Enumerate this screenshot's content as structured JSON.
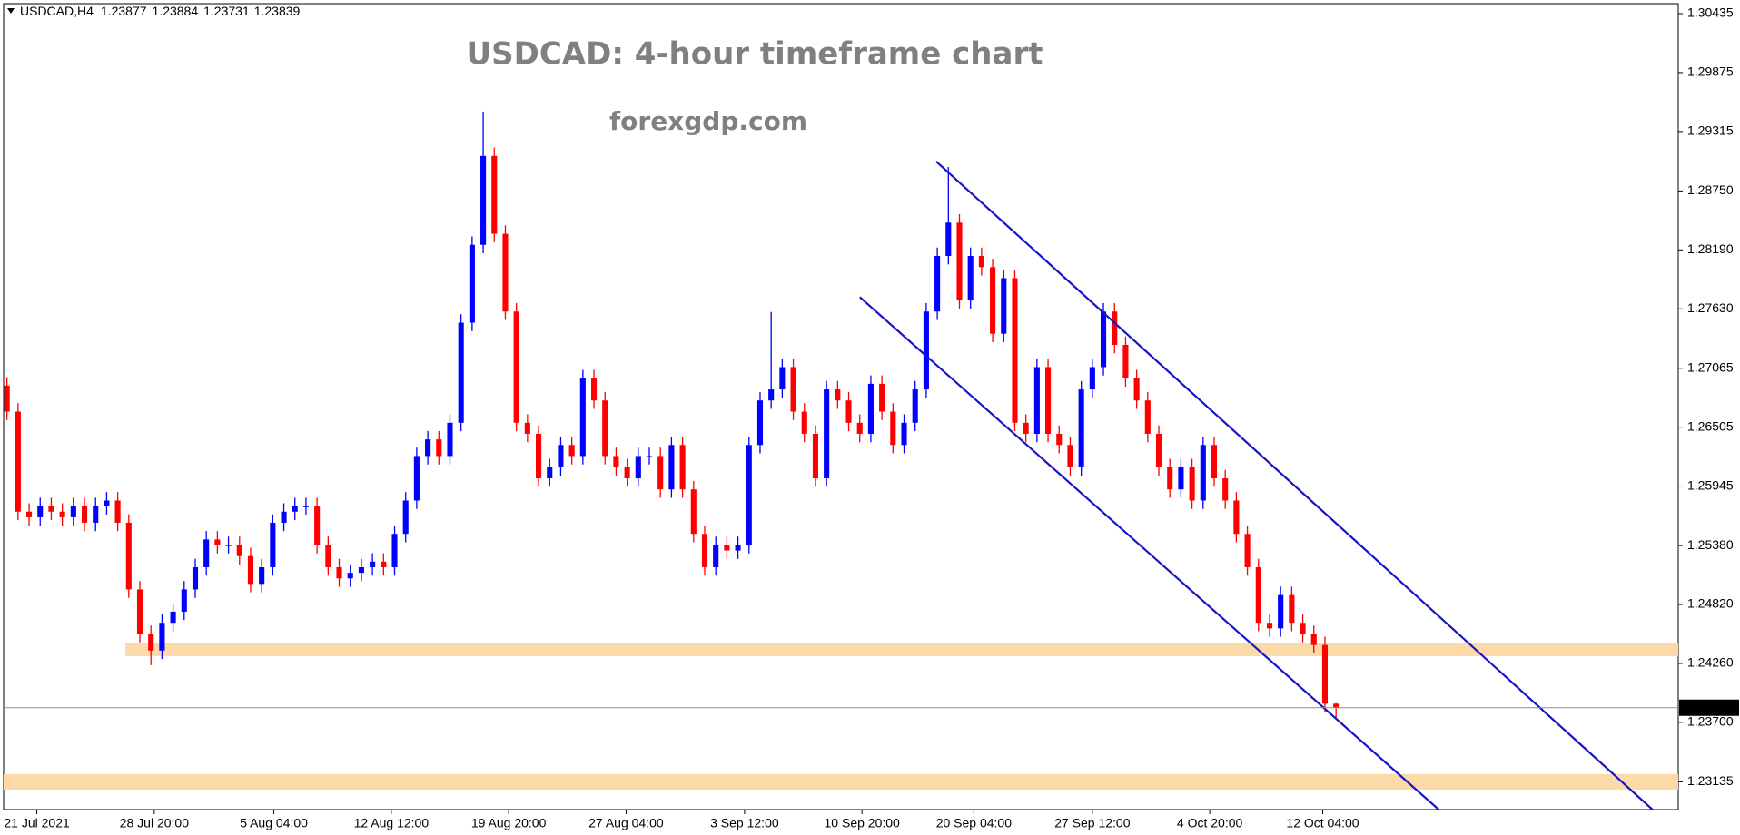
{
  "chart_data": {
    "type": "candlestick",
    "symbol": "USDCAD,H4",
    "title": "USDCAD: 4-hour timeframe chart",
    "subtitle": "forexgdp.com",
    "bull_color": "#0000ff",
    "bear_color": "#ff0000",
    "channel_color": "#1414c8",
    "zone_color": "#fcd9a8",
    "xlim": [
      -0.3,
      150.9
    ],
    "ylim": [
      1.22871,
      1.3053
    ],
    "xticks": [
      {
        "value": 2.7,
        "label": "21 Jul 2021"
      },
      {
        "value": 13.3,
        "label": "28 Jul 20:00"
      },
      {
        "value": 24.1,
        "label": "5 Aug 04:00"
      },
      {
        "value": 34.7,
        "label": "12 Aug 12:00"
      },
      {
        "value": 45.3,
        "label": "19 Aug 20:00"
      },
      {
        "value": 55.9,
        "label": "27 Aug 04:00"
      },
      {
        "value": 66.6,
        "label": "3 Sep 12:00"
      },
      {
        "value": 77.2,
        "label": "10 Sep 20:00"
      },
      {
        "value": 87.3,
        "label": "20 Sep 04:00"
      },
      {
        "value": 98.0,
        "label": "27 Sep 12:00"
      },
      {
        "value": 108.6,
        "label": "4 Oct 20:00"
      },
      {
        "value": 118.8,
        "label": "12 Oct 04:00"
      }
    ],
    "yticks": [
      {
        "value": 1.30435,
        "label": "1.30435"
      },
      {
        "value": 1.29875,
        "label": "1.29875"
      },
      {
        "value": 1.29315,
        "label": "1.29315"
      },
      {
        "value": 1.2875,
        "label": "1.28750"
      },
      {
        "value": 1.2819,
        "label": "1.28190"
      },
      {
        "value": 1.2763,
        "label": "1.27630"
      },
      {
        "value": 1.27065,
        "label": "1.27065"
      },
      {
        "value": 1.26505,
        "label": "1.26505"
      },
      {
        "value": 1.25945,
        "label": "1.25945"
      },
      {
        "value": 1.2538,
        "label": "1.25380"
      },
      {
        "value": 1.2482,
        "label": "1.24820"
      },
      {
        "value": 1.2426,
        "label": "1.24260"
      },
      {
        "value": 1.237,
        "label": "1.23700"
      },
      {
        "value": 1.23135,
        "label": "1.23135"
      }
    ],
    "zones": [
      {
        "start": 10.7,
        "from": 1.24456,
        "to": 1.24329
      },
      {
        "start": -0.3,
        "from": 1.23209,
        "to": 1.23061
      }
    ],
    "trendlines": [
      {
        "points": [
          [
            83.9,
            1.2903
          ],
          [
            148.8,
            1.2285
          ]
        ]
      },
      {
        "points": [
          [
            77.0,
            1.27741
          ],
          [
            129.5,
            1.2285
          ]
        ]
      }
    ],
    "candles": [
      [
        1.269,
        1.2698,
        1.26573,
        1.26653
      ],
      [
        1.26653,
        1.26733,
        1.25622,
        1.25702
      ],
      [
        1.25702,
        1.25782,
        1.25569,
        1.25649
      ],
      [
        1.25649,
        1.25835,
        1.25569,
        1.25755
      ],
      [
        1.25755,
        1.25835,
        1.25622,
        1.25702
      ],
      [
        1.25702,
        1.25782,
        1.25569,
        1.25649
      ],
      [
        1.25649,
        1.25835,
        1.25569,
        1.25755
      ],
      [
        1.25755,
        1.25835,
        1.25517,
        1.25597
      ],
      [
        1.25597,
        1.25835,
        1.25517,
        1.25755
      ],
      [
        1.25755,
        1.25888,
        1.25675,
        1.25808
      ],
      [
        1.25808,
        1.25888,
        1.25517,
        1.25597
      ],
      [
        1.25597,
        1.25677,
        1.24883,
        1.24963
      ],
      [
        1.24963,
        1.25043,
        1.2446,
        1.2454
      ],
      [
        1.2454,
        1.2462,
        1.24244,
        1.24382
      ],
      [
        1.24382,
        1.24726,
        1.24302,
        1.24646
      ],
      [
        1.24646,
        1.24832,
        1.24566,
        1.24752
      ],
      [
        1.24752,
        1.25043,
        1.24672,
        1.24963
      ],
      [
        1.24963,
        1.25254,
        1.24883,
        1.25174
      ],
      [
        1.25174,
        1.25518,
        1.25094,
        1.25438
      ],
      [
        1.25438,
        1.25518,
        1.25305,
        1.25385
      ],
      [
        1.25385,
        1.25465,
        1.25305,
        1.25385
      ],
      [
        1.25385,
        1.25465,
        1.252,
        1.2528
      ],
      [
        1.2528,
        1.2536,
        1.24936,
        1.25016
      ],
      [
        1.25016,
        1.25254,
        1.24936,
        1.25174
      ],
      [
        1.25174,
        1.25677,
        1.25094,
        1.25597
      ],
      [
        1.25597,
        1.25782,
        1.25517,
        1.25702
      ],
      [
        1.25702,
        1.25835,
        1.25622,
        1.25755
      ],
      [
        1.25755,
        1.25835,
        1.25675,
        1.25755
      ],
      [
        1.25755,
        1.25835,
        1.25305,
        1.25385
      ],
      [
        1.25385,
        1.25465,
        1.25094,
        1.25174
      ],
      [
        1.25174,
        1.25254,
        1.24988,
        1.25068
      ],
      [
        1.25068,
        1.25201,
        1.24988,
        1.25121
      ],
      [
        1.25121,
        1.25254,
        1.25041,
        1.25174
      ],
      [
        1.25174,
        1.25307,
        1.25094,
        1.25227
      ],
      [
        1.25227,
        1.25307,
        1.25094,
        1.25174
      ],
      [
        1.25174,
        1.25571,
        1.25094,
        1.25491
      ],
      [
        1.25491,
        1.25888,
        1.25411,
        1.25808
      ],
      [
        1.25808,
        1.26311,
        1.25728,
        1.26231
      ],
      [
        1.26231,
        1.26469,
        1.26151,
        1.26389
      ],
      [
        1.26389,
        1.26469,
        1.26151,
        1.26231
      ],
      [
        1.26231,
        1.26627,
        1.26151,
        1.26547
      ],
      [
        1.26547,
        1.27578,
        1.26467,
        1.27498
      ],
      [
        1.27498,
        1.28318,
        1.27418,
        1.28238
      ],
      [
        1.28238,
        1.29505,
        1.28158,
        1.29083
      ],
      [
        1.29083,
        1.29163,
        1.28263,
        1.28343
      ],
      [
        1.28343,
        1.28423,
        1.27524,
        1.27604
      ],
      [
        1.27604,
        1.27684,
        1.26467,
        1.26547
      ],
      [
        1.26547,
        1.26627,
        1.26362,
        1.26442
      ],
      [
        1.26442,
        1.26522,
        1.25939,
        1.26019
      ],
      [
        1.26019,
        1.26205,
        1.25939,
        1.26125
      ],
      [
        1.26125,
        1.26416,
        1.26045,
        1.26336
      ],
      [
        1.26336,
        1.26416,
        1.26151,
        1.26231
      ],
      [
        1.26231,
        1.2705,
        1.26151,
        1.2697
      ],
      [
        1.2697,
        1.2705,
        1.26679,
        1.26759
      ],
      [
        1.26759,
        1.26839,
        1.26151,
        1.26231
      ],
      [
        1.26231,
        1.26311,
        1.26045,
        1.26125
      ],
      [
        1.26125,
        1.26205,
        1.25939,
        1.26019
      ],
      [
        1.26019,
        1.26311,
        1.25939,
        1.26231
      ],
      [
        1.26231,
        1.26311,
        1.26151,
        1.26231
      ],
      [
        1.26231,
        1.26311,
        1.25834,
        1.25914
      ],
      [
        1.25914,
        1.26416,
        1.25834,
        1.26336
      ],
      [
        1.26336,
        1.26416,
        1.25834,
        1.25914
      ],
      [
        1.25914,
        1.25994,
        1.25411,
        1.25491
      ],
      [
        1.25491,
        1.25571,
        1.25094,
        1.25174
      ],
      [
        1.25174,
        1.25465,
        1.25094,
        1.25385
      ],
      [
        1.25385,
        1.25465,
        1.25253,
        1.25333
      ],
      [
        1.25333,
        1.25465,
        1.25253,
        1.25385
      ],
      [
        1.25385,
        1.26416,
        1.25305,
        1.26336
      ],
      [
        1.26336,
        1.26839,
        1.26256,
        1.26759
      ],
      [
        1.26759,
        1.276,
        1.26679,
        1.26864
      ],
      [
        1.26864,
        1.27156,
        1.26784,
        1.27076
      ],
      [
        1.27076,
        1.27156,
        1.26573,
        1.26653
      ],
      [
        1.26653,
        1.26733,
        1.26362,
        1.26442
      ],
      [
        1.26442,
        1.26522,
        1.25939,
        1.26019
      ],
      [
        1.26019,
        1.26944,
        1.25939,
        1.26864
      ],
      [
        1.26864,
        1.26944,
        1.26679,
        1.26759
      ],
      [
        1.26759,
        1.26839,
        1.26467,
        1.26547
      ],
      [
        1.26547,
        1.26627,
        1.26362,
        1.26442
      ],
      [
        1.26442,
        1.26997,
        1.26362,
        1.26917
      ],
      [
        1.26917,
        1.26997,
        1.26573,
        1.26653
      ],
      [
        1.26653,
        1.26733,
        1.26256,
        1.26336
      ],
      [
        1.26336,
        1.26627,
        1.26256,
        1.26547
      ],
      [
        1.26547,
        1.26944,
        1.26467,
        1.26864
      ],
      [
        1.26864,
        1.27684,
        1.26784,
        1.27604
      ],
      [
        1.27604,
        1.28212,
        1.27524,
        1.28132
      ],
      [
        1.28132,
        1.28977,
        1.28052,
        1.28449
      ],
      [
        1.28449,
        1.28529,
        1.27629,
        1.27709
      ],
      [
        1.27709,
        1.28212,
        1.27629,
        1.28132
      ],
      [
        1.28132,
        1.28212,
        1.27946,
        1.28026
      ],
      [
        1.28026,
        1.28106,
        1.27313,
        1.27393
      ],
      [
        1.27393,
        1.28001,
        1.27313,
        1.27921
      ],
      [
        1.27921,
        1.28001,
        1.26467,
        1.26547
      ],
      [
        1.26547,
        1.26627,
        1.26362,
        1.26442
      ],
      [
        1.26442,
        1.27156,
        1.26362,
        1.27076
      ],
      [
        1.27076,
        1.27156,
        1.26362,
        1.26442
      ],
      [
        1.26442,
        1.26522,
        1.26256,
        1.26336
      ],
      [
        1.26336,
        1.26416,
        1.26045,
        1.26125
      ],
      [
        1.26125,
        1.26944,
        1.26045,
        1.26864
      ],
      [
        1.26864,
        1.27156,
        1.26784,
        1.27076
      ],
      [
        1.27076,
        1.27684,
        1.26996,
        1.27604
      ],
      [
        1.27604,
        1.27684,
        1.27207,
        1.27287
      ],
      [
        1.27287,
        1.27367,
        1.2689,
        1.2697
      ],
      [
        1.2697,
        1.2705,
        1.26679,
        1.26759
      ],
      [
        1.26759,
        1.26839,
        1.26362,
        1.26442
      ],
      [
        1.26442,
        1.26522,
        1.26045,
        1.26125
      ],
      [
        1.26125,
        1.26205,
        1.25834,
        1.25914
      ],
      [
        1.25914,
        1.26205,
        1.25834,
        1.26125
      ],
      [
        1.26125,
        1.26205,
        1.25728,
        1.25808
      ],
      [
        1.25808,
        1.26416,
        1.25728,
        1.26336
      ],
      [
        1.26336,
        1.26416,
        1.25939,
        1.26019
      ],
      [
        1.26019,
        1.26099,
        1.25728,
        1.25808
      ],
      [
        1.25808,
        1.25888,
        1.25411,
        1.25491
      ],
      [
        1.25491,
        1.25571,
        1.25094,
        1.25174
      ],
      [
        1.25174,
        1.25254,
        1.24566,
        1.24646
      ],
      [
        1.24646,
        1.24726,
        1.24513,
        1.24593
      ],
      [
        1.24593,
        1.2499,
        1.24513,
        1.2491
      ],
      [
        1.2491,
        1.2499,
        1.24566,
        1.24646
      ],
      [
        1.24646,
        1.24726,
        1.2446,
        1.2454
      ],
      [
        1.2454,
        1.2462,
        1.24355,
        1.24435
      ],
      [
        1.24435,
        1.24515,
        1.23797,
        1.23877
      ],
      [
        1.23877,
        1.23884,
        1.23731,
        1.23839
      ]
    ]
  }
}
